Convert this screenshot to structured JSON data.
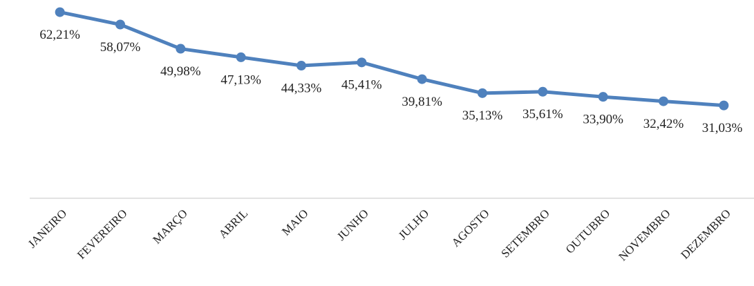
{
  "chart_data": {
    "type": "line",
    "categories": [
      "JANEIRO",
      "FEVEREIRO",
      "MARÇO",
      "ABRIL",
      "MAIO",
      "JUNHO",
      "JULHO",
      "AGOSTO",
      "SETEMBRO",
      "OUTUBRO",
      "NOVEMBRO",
      "DEZEMBRO"
    ],
    "series": [
      {
        "color": "#4f81bd",
        "values": [
          62.21,
          58.07,
          49.98,
          47.13,
          44.33,
          45.41,
          39.81,
          35.13,
          35.61,
          33.9,
          32.42,
          31.03
        ],
        "value_labels": [
          "62,21%",
          "58,07%",
          "49,98%",
          "47,13%",
          "44,33%",
          "45,41%",
          "39,81%",
          "35,13%",
          "35,61%",
          "33,90%",
          "32,42%",
          "31,03%"
        ]
      }
    ],
    "ylim": [
      0,
      65
    ]
  }
}
